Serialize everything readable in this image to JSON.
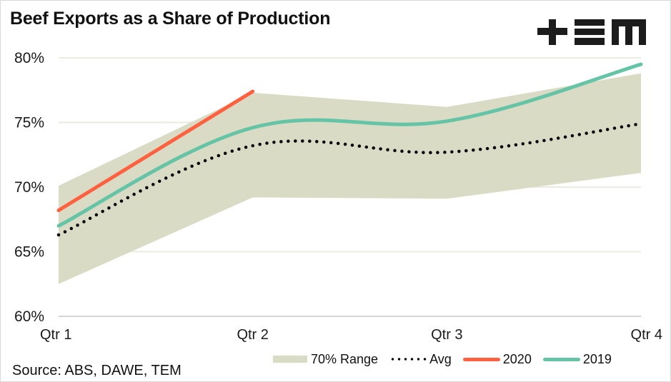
{
  "chart_data": {
    "type": "line",
    "title": "Beef Exports as a Share of Production",
    "xlabel": "",
    "ylabel": "",
    "categories": [
      "Qtr 1",
      "Qtr 2",
      "Qtr 3",
      "Qtr 4"
    ],
    "y_ticks": [
      "60%",
      "65%",
      "70%",
      "75%",
      "80%"
    ],
    "y_tick_values": [
      60,
      65,
      70,
      75,
      80
    ],
    "ylim": [
      60,
      80
    ],
    "grid": true,
    "legend_position": "bottom-right",
    "range": {
      "name": "70% Range",
      "color": "#d9dbc5",
      "upper": [
        70.1,
        77.3,
        76.2,
        78.8
      ],
      "lower": [
        62.5,
        69.2,
        69.1,
        71.1
      ]
    },
    "series": [
      {
        "name": "Avg",
        "style": "dotted",
        "color": "#000000",
        "values": [
          66.3,
          73.2,
          72.7,
          74.9
        ]
      },
      {
        "name": "2020",
        "style": "solid",
        "color": "#ff6140",
        "values": [
          68.2,
          77.4,
          null,
          null
        ]
      },
      {
        "name": "2019",
        "style": "solid",
        "color": "#66c4a6",
        "values": [
          67.0,
          74.6,
          75.1,
          79.5
        ]
      }
    ],
    "source": "Source: ABS, DAWE, TEM"
  },
  "logo": {
    "text": "+≡m",
    "name": "TEM"
  },
  "legend": {
    "range_label": "70% Range",
    "avg_label": "Avg",
    "s2020_label": "2020",
    "s2019_label": "2019"
  }
}
